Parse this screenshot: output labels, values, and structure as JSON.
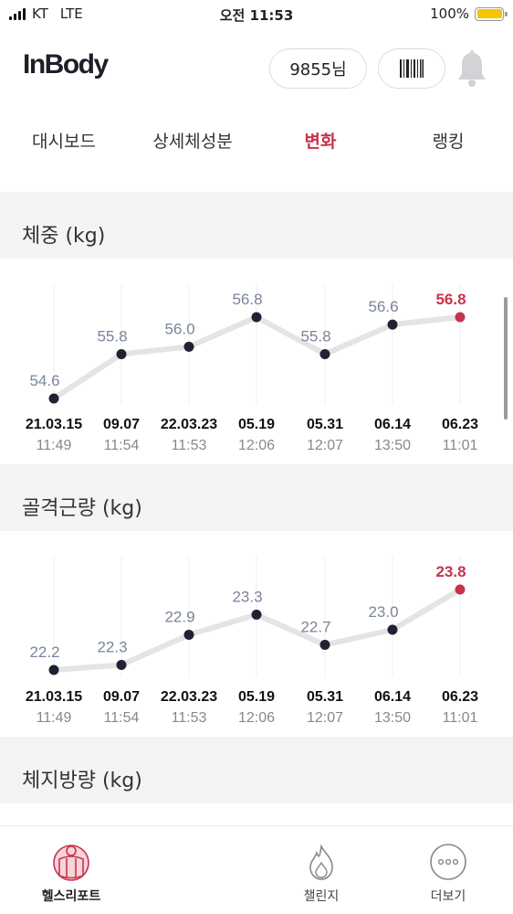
{
  "status_bar": {
    "carrier": "KT",
    "network": "LTE",
    "time": "오전 11:53",
    "battery": "100%",
    "battery_level": 1.0
  },
  "header": {
    "logo": "InBody",
    "user_label": "9855님",
    "barcode_icon": "barcode-icon",
    "bell_icon": "bell-icon"
  },
  "tabs": [
    {
      "label": "대시보드",
      "active": false
    },
    {
      "label": "상세체성분",
      "active": false
    },
    {
      "label": "변화",
      "active": true
    },
    {
      "label": "랭킹",
      "active": false
    }
  ],
  "sections": [
    {
      "title": "체중 (kg)"
    },
    {
      "title": "골격근량 (kg)"
    },
    {
      "title": "체지방량 (kg)"
    }
  ],
  "chart_data": [
    {
      "type": "line",
      "title": "체중 (kg)",
      "x": [
        {
          "date": "21.03.15",
          "time": "11:49"
        },
        {
          "date": "09.07",
          "time": "11:54"
        },
        {
          "date": "22.03.23",
          "time": "11:53"
        },
        {
          "date": "05.19",
          "time": "12:06"
        },
        {
          "date": "05.31",
          "time": "12:07"
        },
        {
          "date": "06.14",
          "time": "13:50"
        },
        {
          "date": "06.23",
          "time": "11:01"
        }
      ],
      "values": [
        54.6,
        55.8,
        56.0,
        56.8,
        55.8,
        56.6,
        56.8
      ],
      "labels": [
        "54.6",
        "55.8",
        "56.0",
        "56.8",
        "55.8",
        "56.6",
        "56.8"
      ],
      "highlight_index": 6,
      "colors": {
        "point": "#1f2233",
        "highlight": "#c8324a",
        "line": "#e4e4e4",
        "label": "#7a8599"
      }
    },
    {
      "type": "line",
      "title": "골격근량 (kg)",
      "x": [
        {
          "date": "21.03.15",
          "time": "11:49"
        },
        {
          "date": "09.07",
          "time": "11:54"
        },
        {
          "date": "22.03.23",
          "time": "11:53"
        },
        {
          "date": "05.19",
          "time": "12:06"
        },
        {
          "date": "05.31",
          "time": "12:07"
        },
        {
          "date": "06.14",
          "time": "13:50"
        },
        {
          "date": "06.23",
          "time": "11:01"
        }
      ],
      "values": [
        22.2,
        22.3,
        22.9,
        23.3,
        22.7,
        23.0,
        23.8
      ],
      "labels": [
        "22.2",
        "22.3",
        "22.9",
        "23.3",
        "22.7",
        "23.0",
        "23.8"
      ],
      "highlight_index": 6,
      "colors": {
        "point": "#1f2233",
        "highlight": "#c8324a",
        "line": "#e4e4e4",
        "label": "#7a8599"
      }
    }
  ],
  "bottom_nav": [
    {
      "label": "헬스리포트",
      "icon": "health-report-icon",
      "active": true
    },
    {
      "label": "챌린지",
      "icon": "flame-icon",
      "active": false
    },
    {
      "label": "더보기",
      "icon": "more-icon",
      "active": false
    }
  ]
}
